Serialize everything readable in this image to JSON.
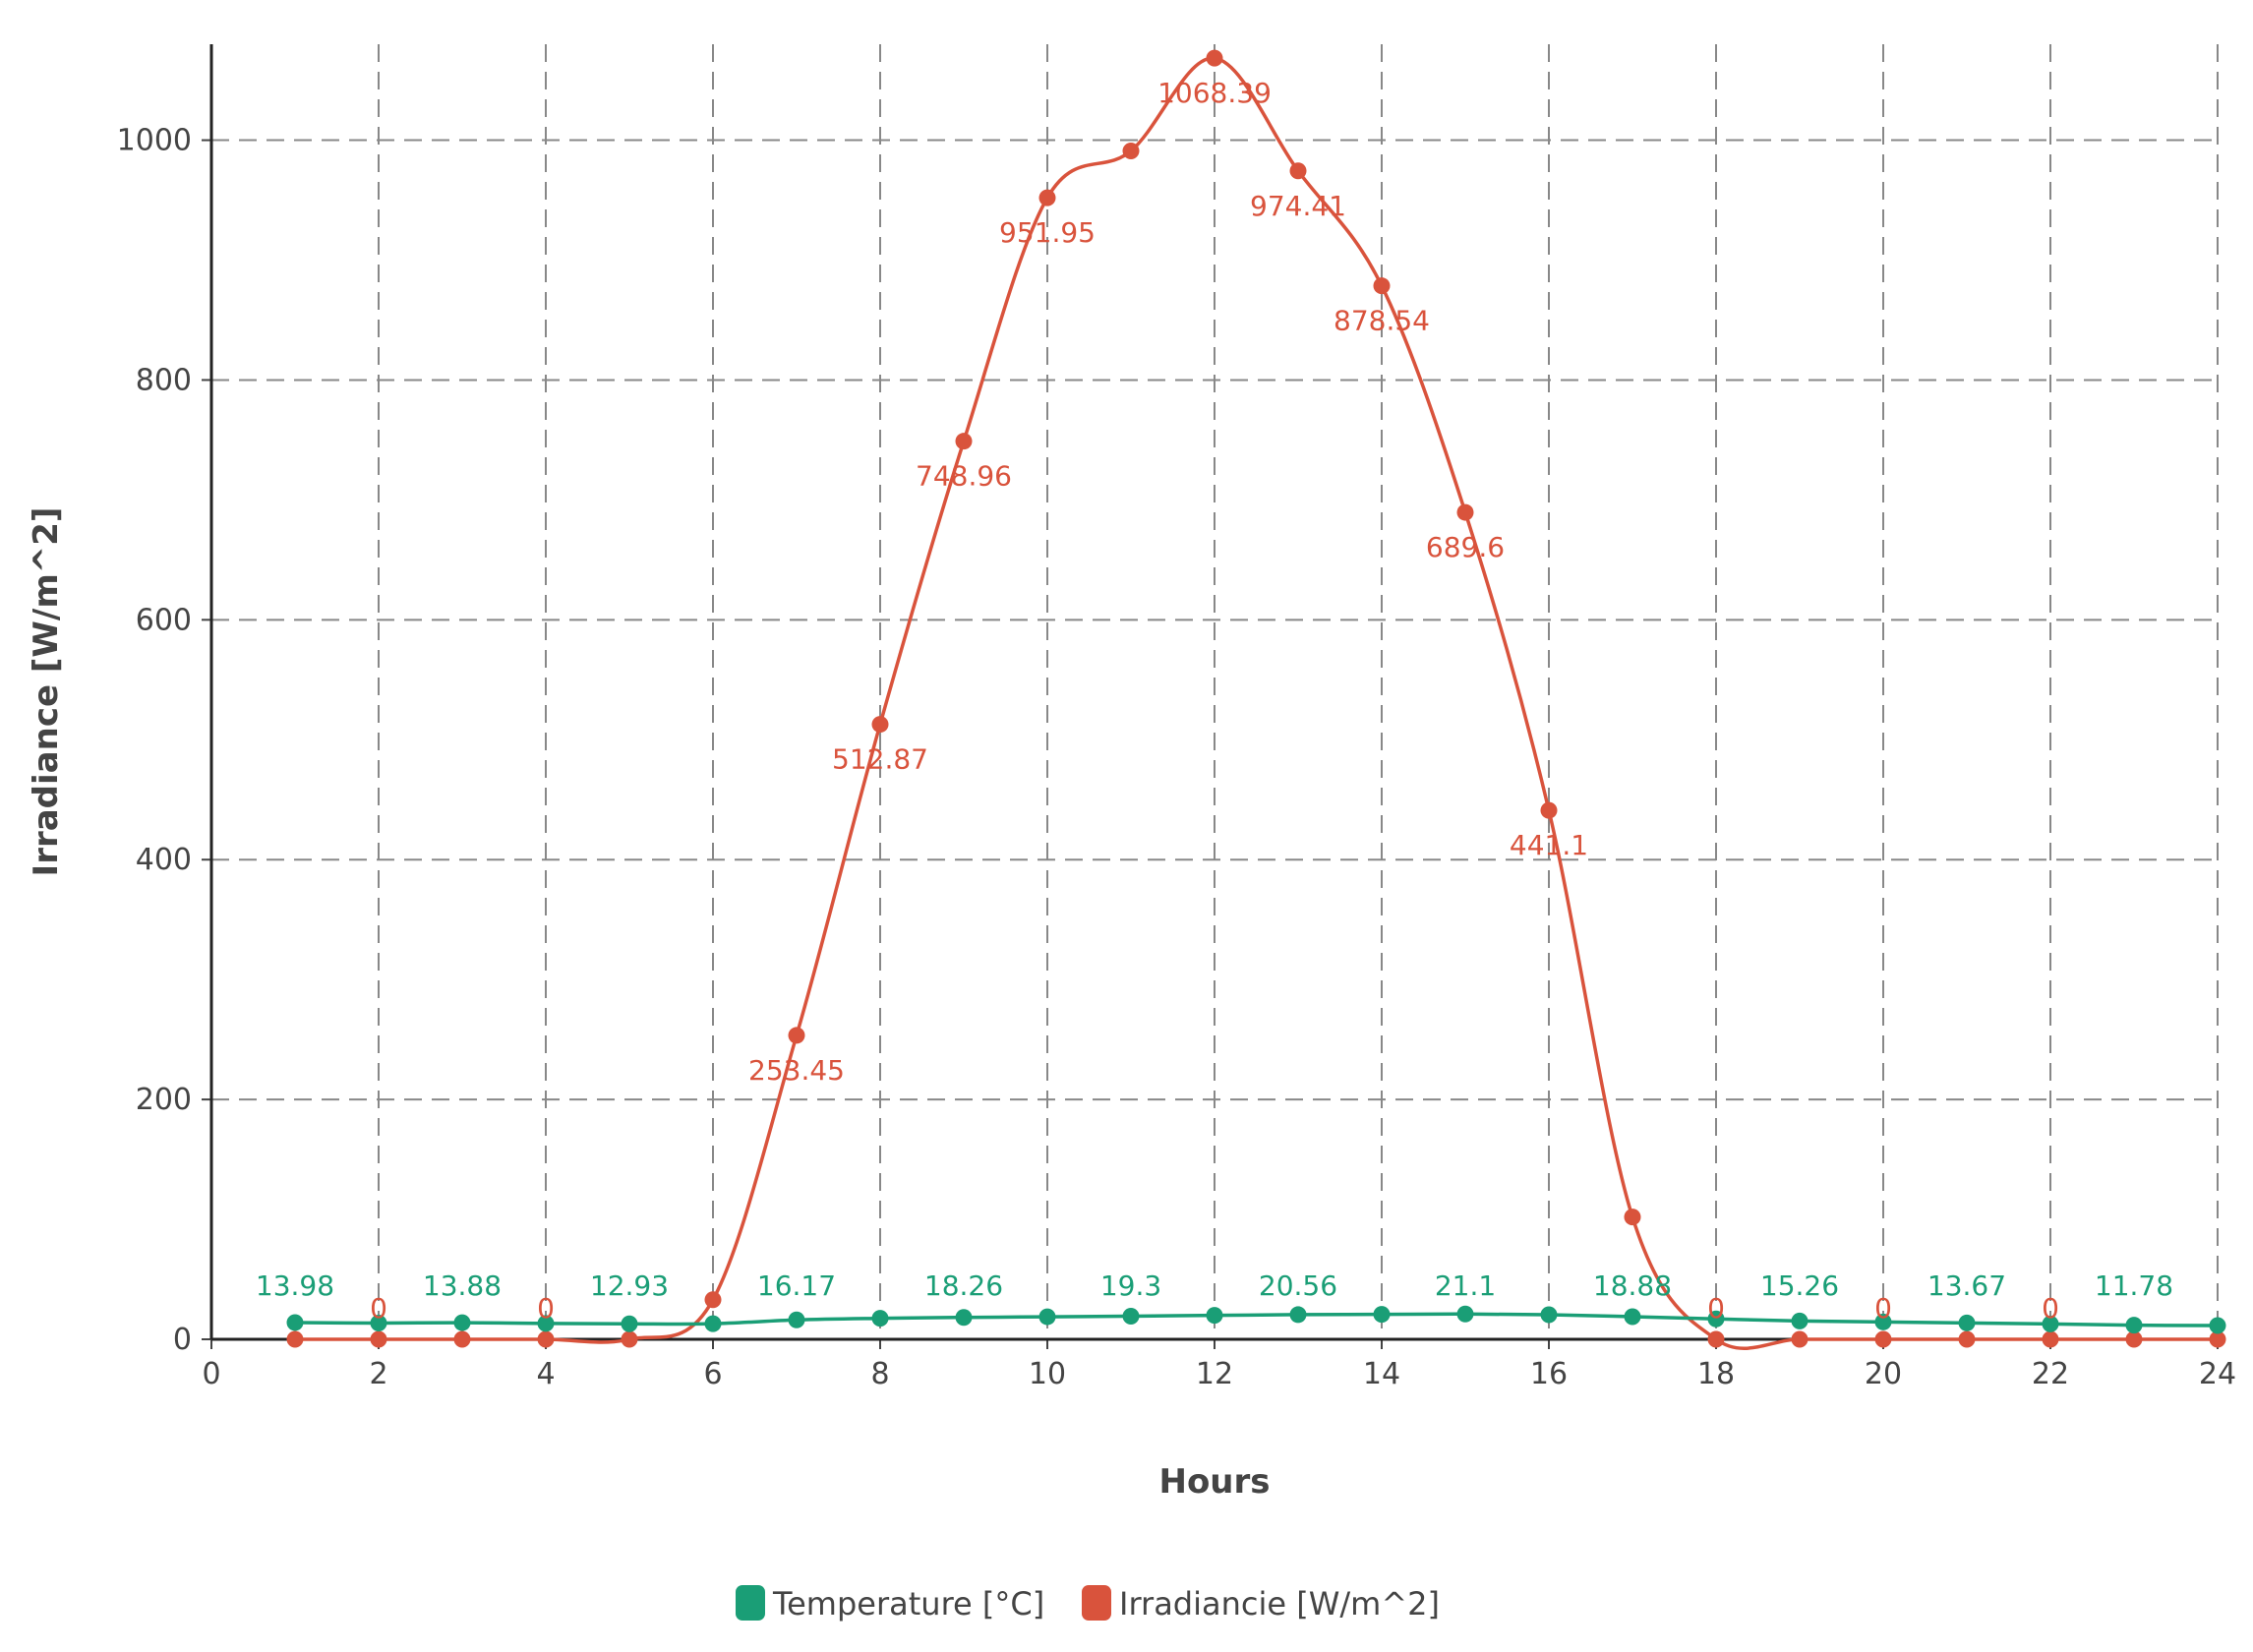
{
  "chart_data": {
    "type": "line",
    "xlabel": "Hours",
    "ylabel": "Irradiance [W/m^2]",
    "xlim": [
      0,
      24
    ],
    "ylim": [
      0,
      1080
    ],
    "x_ticks": [
      "0",
      "2",
      "4",
      "6",
      "8",
      "10",
      "12",
      "14",
      "16",
      "18",
      "20",
      "22",
      "24"
    ],
    "y_ticks": [
      "0",
      "200",
      "400",
      "600",
      "800",
      "1000"
    ],
    "grid": true,
    "grid_style": "dashed",
    "legend_position": "bottom-center",
    "series": [
      {
        "name": "Temperature [°C]",
        "color": "#1a9e76",
        "x": [
          1,
          2,
          3,
          4,
          5,
          6,
          7,
          8,
          9,
          10,
          11,
          12,
          13,
          14,
          15,
          16,
          17,
          18,
          19,
          20,
          21,
          22,
          23,
          24
        ],
        "values": [
          13.98,
          13.5,
          13.88,
          13.2,
          12.93,
          13.0,
          16.17,
          17.5,
          18.26,
          18.8,
          19.3,
          20.0,
          20.56,
          20.8,
          21.1,
          20.5,
          18.88,
          17.0,
          15.26,
          14.5,
          13.67,
          12.8,
          11.78,
          11.5
        ],
        "labels": [
          {
            "x": 1,
            "text": "13.98"
          },
          {
            "x": 3,
            "text": "13.88"
          },
          {
            "x": 5,
            "text": "12.93"
          },
          {
            "x": 7,
            "text": "16.17"
          },
          {
            "x": 9,
            "text": "18.26"
          },
          {
            "x": 11,
            "text": "19.3"
          },
          {
            "x": 13,
            "text": "20.56"
          },
          {
            "x": 15,
            "text": "21.1"
          },
          {
            "x": 17,
            "text": "18.88"
          },
          {
            "x": 19,
            "text": "15.26"
          },
          {
            "x": 21,
            "text": "13.67"
          },
          {
            "x": 23,
            "text": "11.78"
          }
        ]
      },
      {
        "name": "Irradiancie [W/m^2]",
        "color": "#d9533c",
        "x": [
          1,
          2,
          3,
          4,
          5,
          6,
          7,
          8,
          9,
          10,
          11,
          12,
          13,
          14,
          15,
          16,
          17,
          18,
          19,
          20,
          21,
          22,
          23,
          24
        ],
        "values": [
          0,
          0,
          0,
          0,
          0,
          33,
          253.45,
          512.87,
          748.96,
          951.95,
          991,
          1068.39,
          974.41,
          878.54,
          689.6,
          441.1,
          102,
          0,
          0,
          0,
          0,
          0,
          0,
          0
        ],
        "labels": [
          {
            "x": 2,
            "text": "0"
          },
          {
            "x": 4,
            "text": "0"
          },
          {
            "x": 7,
            "text": "253.45"
          },
          {
            "x": 8,
            "text": "512.87"
          },
          {
            "x": 9,
            "text": "748.96"
          },
          {
            "x": 10,
            "text": "951.95"
          },
          {
            "x": 12,
            "text": "1068.39"
          },
          {
            "x": 13,
            "text": "974.41"
          },
          {
            "x": 14,
            "text": "878.54"
          },
          {
            "x": 15,
            "text": "689.6"
          },
          {
            "x": 16,
            "text": "441.1"
          },
          {
            "x": 18,
            "text": "0"
          },
          {
            "x": 20,
            "text": "0"
          },
          {
            "x": 22,
            "text": "0"
          }
        ]
      }
    ]
  }
}
